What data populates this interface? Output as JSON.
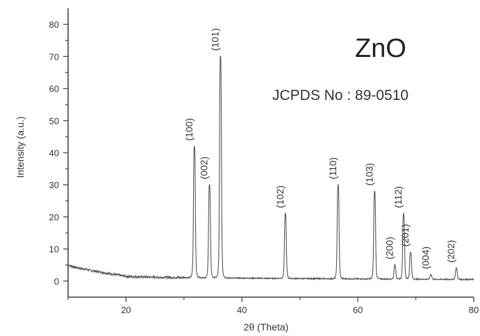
{
  "chart_data": {
    "type": "line",
    "title": "ZnO",
    "subtitle": "JCPDS No : 89-0510",
    "xlabel": "2θ (Theta)",
    "ylabel": "Intensity (a.u.)",
    "xlim": [
      10,
      80
    ],
    "ylim": [
      -5,
      85
    ],
    "x_ticks": [
      20,
      40,
      60,
      80
    ],
    "y_ticks": [
      0,
      10,
      20,
      30,
      40,
      50,
      60,
      70,
      80
    ],
    "grid": false,
    "background": {
      "start": 5,
      "mid_x": 20,
      "mid": 1.5,
      "end": 0.5
    },
    "peaks": [
      {
        "hkl": "(100)",
        "x": 31.8,
        "y": 42
      },
      {
        "hkl": "(002)",
        "x": 34.4,
        "y": 30
      },
      {
        "hkl": "(101)",
        "x": 36.3,
        "y": 70
      },
      {
        "hkl": "(102)",
        "x": 47.5,
        "y": 21
      },
      {
        "hkl": "(110)",
        "x": 56.6,
        "y": 30
      },
      {
        "hkl": "(103)",
        "x": 62.9,
        "y": 28
      },
      {
        "hkl": "(200)",
        "x": 66.4,
        "y": 5
      },
      {
        "hkl": "(112)",
        "x": 67.9,
        "y": 21
      },
      {
        "hkl": "(201)",
        "x": 69.1,
        "y": 9
      },
      {
        "hkl": "(004)",
        "x": 72.6,
        "y": 2
      },
      {
        "hkl": "(202)",
        "x": 77.0,
        "y": 4
      }
    ]
  }
}
